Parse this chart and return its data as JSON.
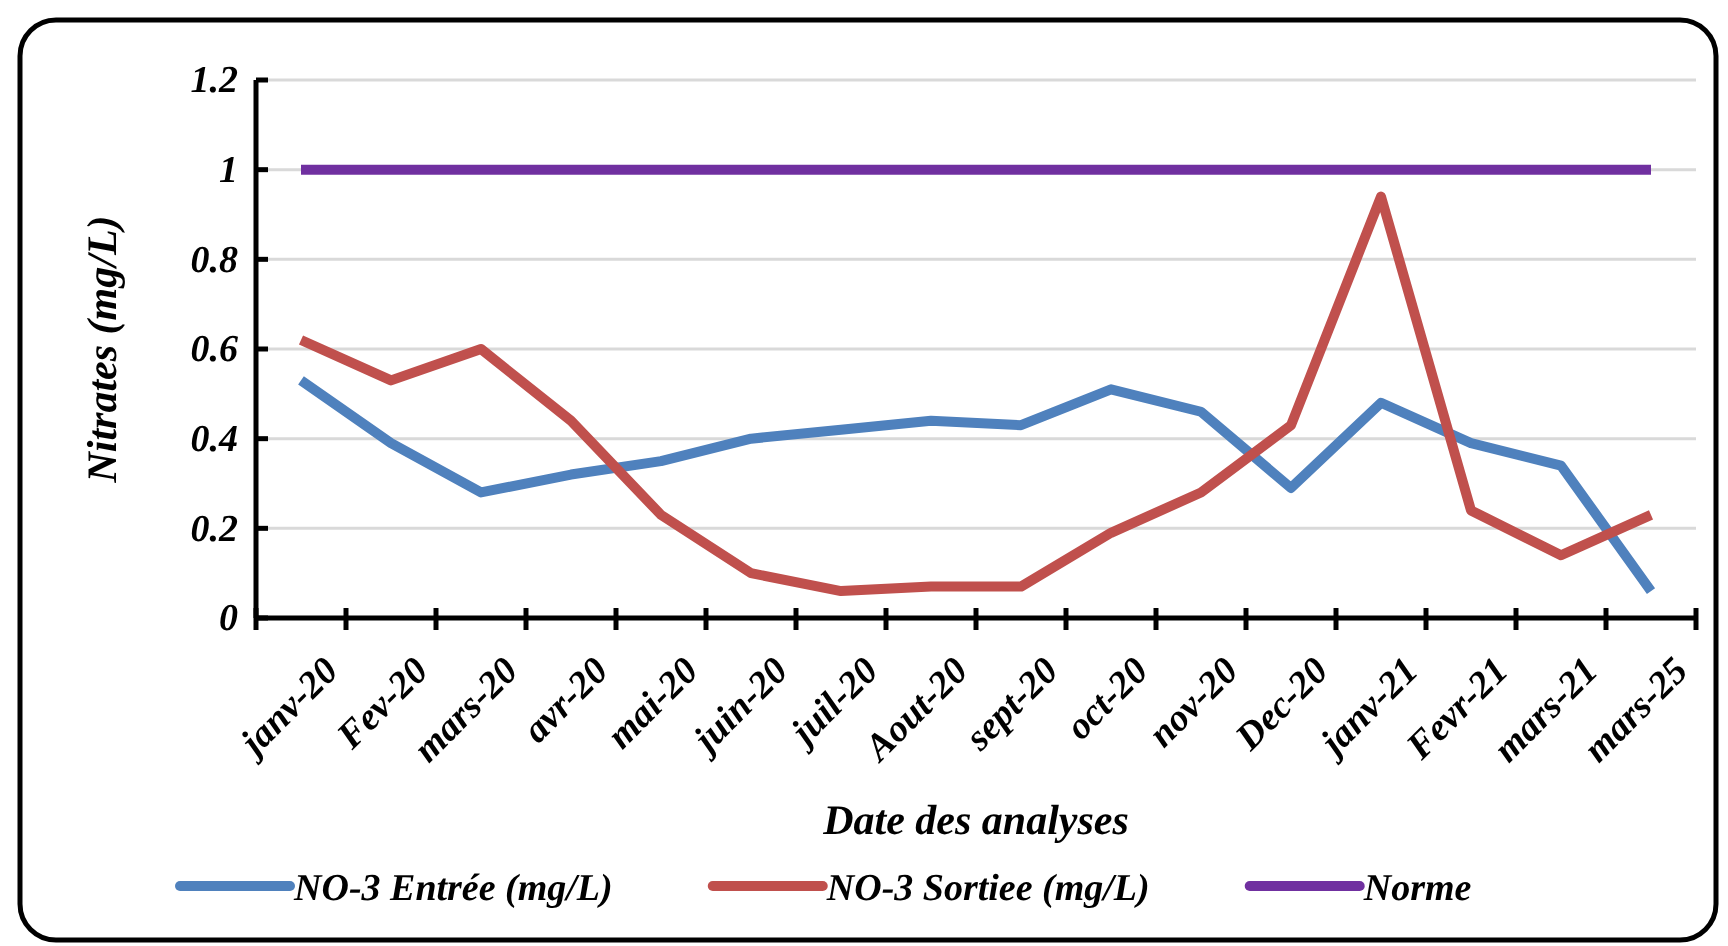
{
  "chart_data": {
    "type": "line",
    "xlabel": "Date des analyses",
    "ylabel": "Nitrates (mg/L)",
    "categories": [
      "janv-20",
      "Fev-20",
      "mars-20",
      "avr-20",
      "mai-20",
      "juin-20",
      "juil-20",
      "Aout-20",
      "sept-20",
      "oct-20",
      "nov-20",
      "Dec-20",
      "janv-21",
      "Fevr-21",
      "mars-21",
      "mars-25"
    ],
    "series": [
      {
        "name": "NO-3 Entrée (mg/L)",
        "color": "#4f81bd",
        "values": [
          0.53,
          0.39,
          0.28,
          0.32,
          0.35,
          0.4,
          0.42,
          0.44,
          0.43,
          0.51,
          0.46,
          0.29,
          0.48,
          0.39,
          0.34,
          0.06
        ]
      },
      {
        "name": "NO-3 Sortiee (mg/L)",
        "color": "#c0504d",
        "values": [
          0.62,
          0.53,
          0.6,
          0.44,
          0.23,
          0.1,
          0.06,
          0.07,
          0.07,
          0.19,
          0.28,
          0.43,
          0.94,
          0.24,
          0.14,
          0.23
        ]
      },
      {
        "name": "Norme",
        "color": "#7030a0",
        "values": [
          1,
          1,
          1,
          1,
          1,
          1,
          1,
          1,
          1,
          1,
          1,
          1,
          1,
          1,
          1,
          1
        ]
      }
    ],
    "ylim": [
      0,
      1.2
    ],
    "yticks": [
      0,
      0.2,
      0.4,
      0.6,
      0.8,
      1,
      1.2
    ],
    "grid": "y",
    "legend": "bottom",
    "marker": "none",
    "line_style": "solid"
  }
}
